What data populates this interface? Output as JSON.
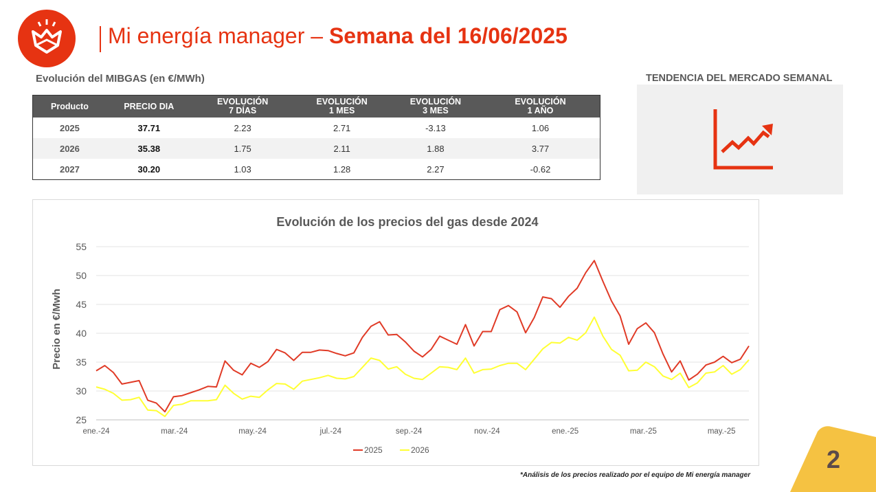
{
  "header": {
    "title_thin": "Mi energía manager – ",
    "title_bold": "Semana del 16/06/2025",
    "brand_color": "#e63312"
  },
  "mibgas": {
    "label": "Evolución del MIBGAS (en €/MWh)",
    "columns": [
      [
        "Producto"
      ],
      [
        "PRECIO DIA"
      ],
      [
        "EVOLUCIÓN",
        "7 DÍAS"
      ],
      [
        "EVOLUCIÓN",
        "1 MES"
      ],
      [
        "EVOLUCIÓN",
        "3 MES"
      ],
      [
        "EVOLUCIÓN",
        "1 AÑO"
      ]
    ],
    "rows": [
      [
        "2025",
        "37.71",
        "2.23",
        "2.71",
        "-3.13",
        "1.06"
      ],
      [
        "2026",
        "35.38",
        "1.75",
        "2.11",
        "1.88",
        "3.77"
      ],
      [
        "2027",
        "30.20",
        "1.03",
        "1.28",
        "2.27",
        "-0.62"
      ]
    ]
  },
  "trend": {
    "title": "TENDENCIA DEL MERCADO SEMANAL",
    "icon": "trend-up-icon",
    "color": "#e63312"
  },
  "chart_data": {
    "type": "line",
    "title": "Evolución de los precios del gas desde 2024",
    "ylabel": "Precio en €/Mwh",
    "xlabel": "",
    "ylim": [
      25,
      55
    ],
    "yticks": [
      25,
      30,
      35,
      40,
      45,
      50,
      55
    ],
    "x_tick_labels": [
      "ene.-24",
      "mar.-24",
      "may.-24",
      "jul.-24",
      "sep.-24",
      "nov.-24",
      "ene.-25",
      "mar.-25",
      "may.-25"
    ],
    "grid": true,
    "legend": "bottom-center",
    "series": [
      {
        "name": "2025",
        "color": "#e03a26",
        "values": [
          33.5,
          34.4,
          33.2,
          31.2,
          31.5,
          31.8,
          28.4,
          27.9,
          26.4,
          29.0,
          29.2,
          29.7,
          30.2,
          30.8,
          30.7,
          35.2,
          33.6,
          32.8,
          34.8,
          34.1,
          35.1,
          37.2,
          36.6,
          35.3,
          36.7,
          36.7,
          37.1,
          37.0,
          36.5,
          36.1,
          36.6,
          39.3,
          41.2,
          42.0,
          39.7,
          39.8,
          38.5,
          36.9,
          35.9,
          37.2,
          39.5,
          38.8,
          38.1,
          41.5,
          37.8,
          40.3,
          40.3,
          44.1,
          44.8,
          43.7,
          40.1,
          42.7,
          46.3,
          46.0,
          44.5,
          46.4,
          47.8,
          50.5,
          52.6,
          49.0,
          45.6,
          43.0,
          38.1,
          40.8,
          41.8,
          40.1,
          36.4,
          33.3,
          35.2,
          31.9,
          32.9,
          34.5,
          35.0,
          36.0,
          34.9,
          35.5,
          37.8
        ]
      },
      {
        "name": "2026",
        "color": "#ffff33",
        "values": [
          30.7,
          30.3,
          29.6,
          28.4,
          28.5,
          28.9,
          26.7,
          26.6,
          25.6,
          27.5,
          27.7,
          28.3,
          28.3,
          28.3,
          28.5,
          31.0,
          29.6,
          28.6,
          29.1,
          28.9,
          30.2,
          31.3,
          31.2,
          30.3,
          31.7,
          32.0,
          32.3,
          32.7,
          32.2,
          32.1,
          32.5,
          34.1,
          35.7,
          35.3,
          33.8,
          34.2,
          32.9,
          32.2,
          32.0,
          33.1,
          34.2,
          34.1,
          33.7,
          35.7,
          33.1,
          33.7,
          33.8,
          34.4,
          34.8,
          34.8,
          33.7,
          35.5,
          37.3,
          38.4,
          38.3,
          39.3,
          38.8,
          40.1,
          42.8,
          39.5,
          37.2,
          36.2,
          33.5,
          33.6,
          35.0,
          34.2,
          32.6,
          32.0,
          33.1,
          30.6,
          31.4,
          33.1,
          33.3,
          34.4,
          32.9,
          33.7,
          35.4
        ]
      }
    ]
  },
  "footnote": "*Análisis de los precios realizado por el equipo de Mi energía manager",
  "page_number": "2",
  "badge_color": "#f5c242"
}
